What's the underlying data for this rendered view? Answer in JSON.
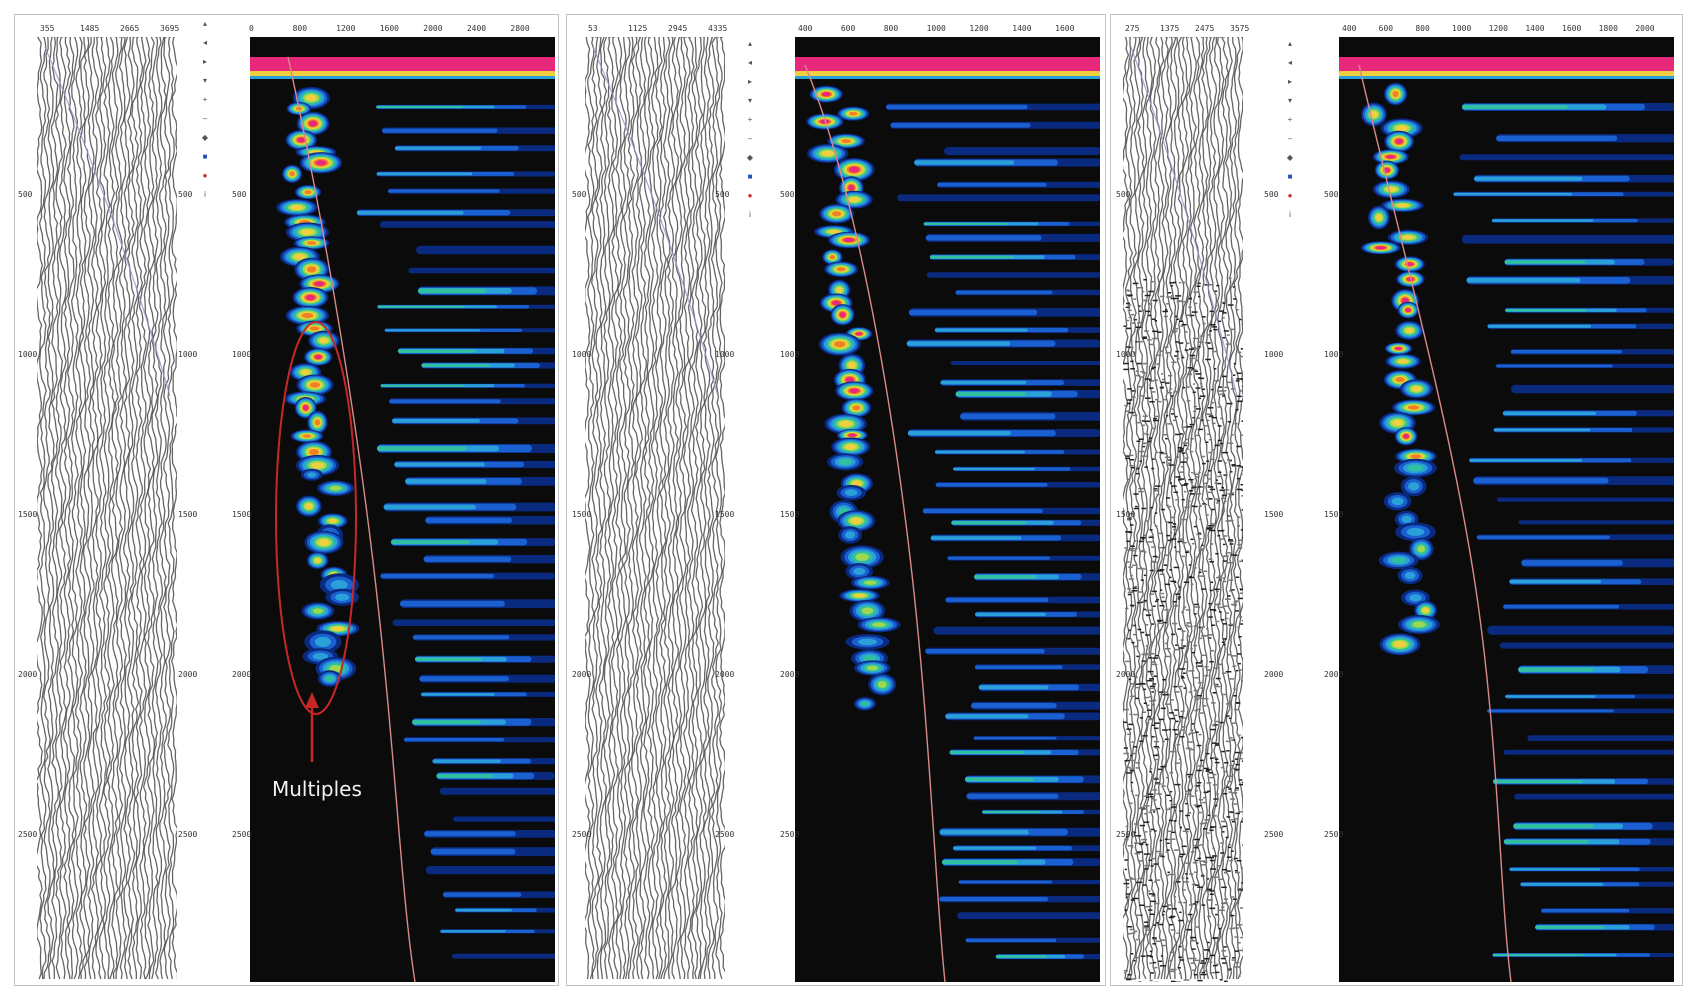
{
  "annotation": {
    "label": "Multiples",
    "color": "#c62828"
  },
  "colors": {
    "background": "#0b0b0b",
    "ramp": [
      "#0a2a80",
      "#1a60d0",
      "#2aa0d8",
      "#30c0a0",
      "#9cd850",
      "#f0d040",
      "#f08020",
      "#e8287a"
    ],
    "velocity_curve": "#d88a8a",
    "gather_trace": "#4a4a4a"
  },
  "panels": [
    {
      "id": 1,
      "gather_top_ticks": [
        "355",
        "1485",
        "2665",
        "3695"
      ],
      "depth_ticks_left": [
        "500",
        "1000",
        "1500",
        "2000",
        "2500"
      ],
      "depth_ticks_right": [
        "500",
        "1000",
        "1500",
        "2000",
        "2500"
      ],
      "spectrum_top_ticks": [
        "0",
        "800",
        "1200",
        "1600",
        "2000",
        "2400",
        "2800"
      ],
      "spectrum_depth_ticks": [
        "500",
        "1000",
        "1500",
        "2000",
        "2500"
      ]
    },
    {
      "id": 2,
      "gather_top_ticks": [
        "53",
        "1125",
        "2945",
        "4335"
      ],
      "depth_ticks_left": [
        "500",
        "1000",
        "1500",
        "2000",
        "2500"
      ],
      "depth_ticks_right": [
        "500",
        "1000",
        "1500",
        "2000",
        "2500"
      ],
      "spectrum_top_ticks": [
        "400",
        "600",
        "800",
        "1000",
        "1200",
        "1400",
        "1600"
      ],
      "spectrum_depth_ticks": [
        "500",
        "1000",
        "1500",
        "2000",
        "2500"
      ]
    },
    {
      "id": 3,
      "gather_top_ticks": [
        "275",
        "1375",
        "2475",
        "3575"
      ],
      "depth_ticks_left": [
        "500",
        "1000",
        "1500",
        "2000",
        "2500"
      ],
      "depth_ticks_right": [
        "500",
        "1000",
        "1500",
        "2000",
        "2500"
      ],
      "spectrum_top_ticks": [
        "400",
        "600",
        "800",
        "1000",
        "1200",
        "1400",
        "1600",
        "1800",
        "2000"
      ],
      "spectrum_depth_ticks": [
        "500",
        "1000",
        "1500",
        "2000",
        "2500"
      ]
    }
  ],
  "icons": [
    "select-icon",
    "zoom-in-icon",
    "zoom-out-icon",
    "pan-icon",
    "pick-icon",
    "undo-icon",
    "redo-icon",
    "blue-marker-icon",
    "red-marker-icon",
    "info-icon"
  ]
}
